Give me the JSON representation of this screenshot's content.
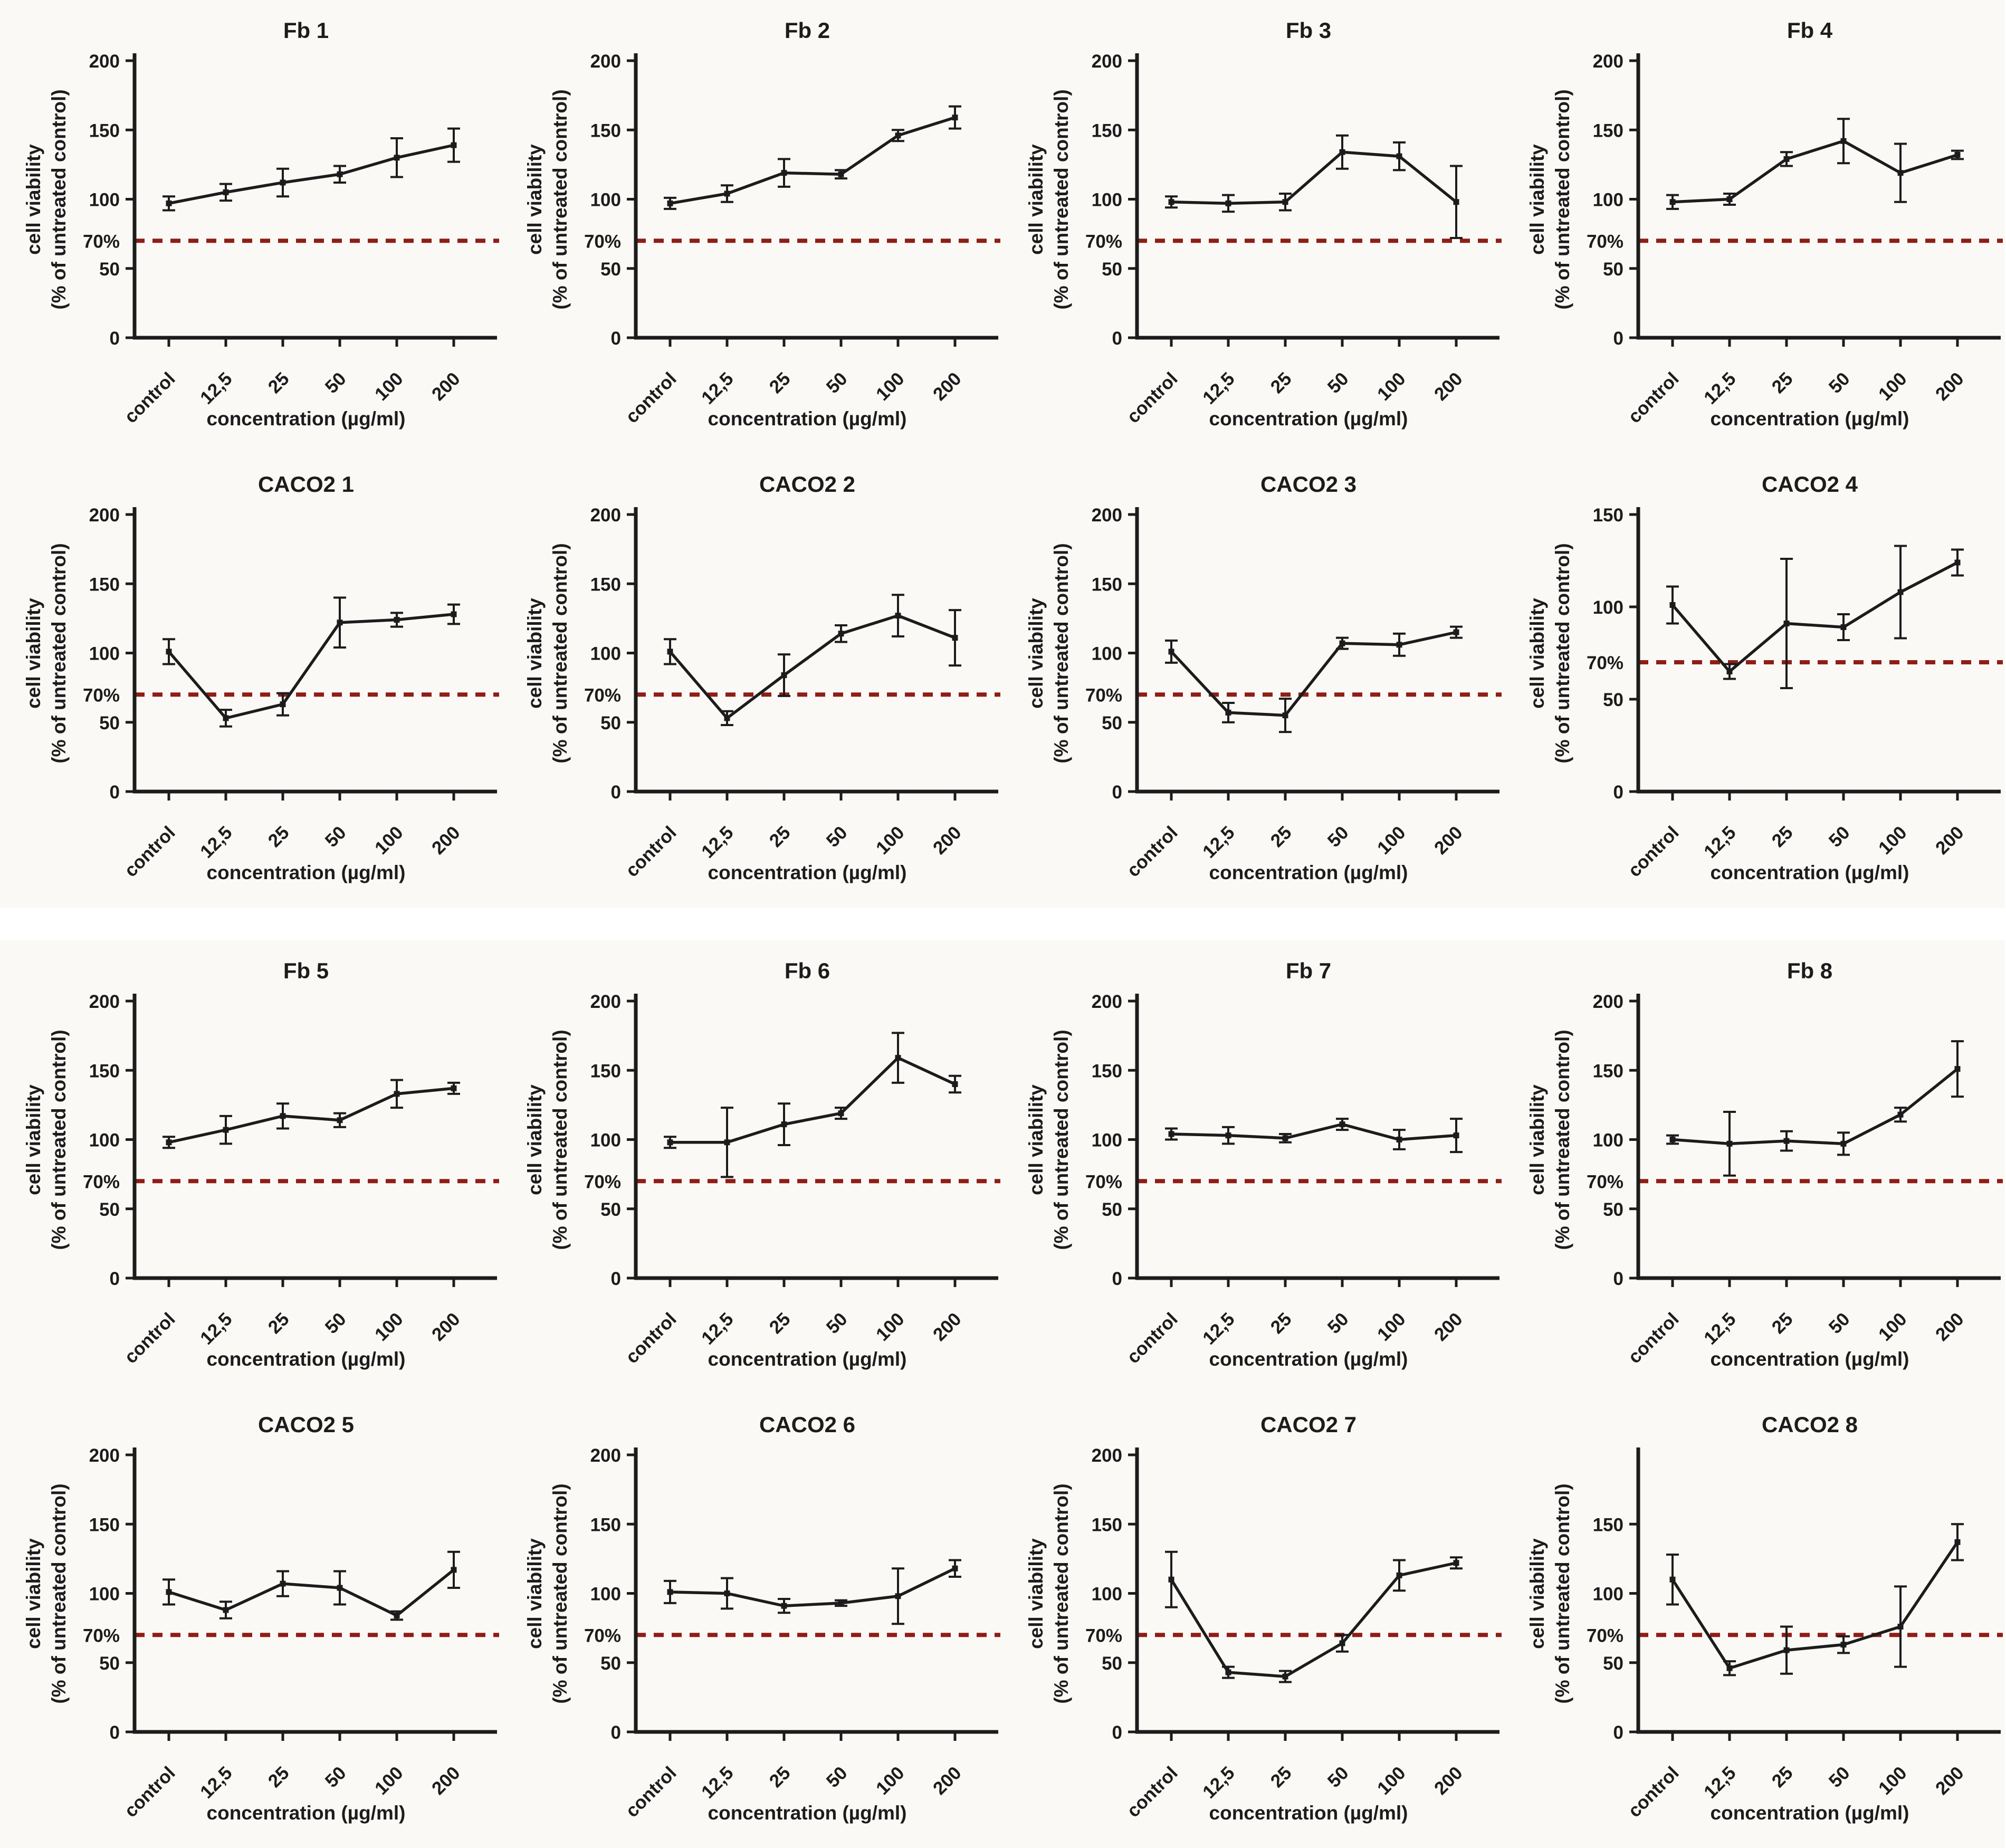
{
  "figure": {
    "x_label": "concentration (µg/ml)",
    "y_label_line1": "cell viability",
    "y_label_line2": "(% of untreated control)",
    "threshold_label": "70%",
    "threshold_value": 70,
    "threshold_color": "#8e1e16",
    "line_color": "#1c1c1c",
    "background_color": "#fbf9f6"
  },
  "chart_data": [
    {
      "type": "line",
      "title": "Fb 1",
      "xlabel": "concentration (µg/ml)",
      "ylabel": "cell viability (% of untreated control)",
      "categories": [
        "control",
        "12,5",
        "25",
        "50",
        "100",
        "200"
      ],
      "values": [
        97,
        105,
        112,
        118,
        130,
        139
      ],
      "errors": [
        5,
        6,
        10,
        6,
        14,
        12
      ],
      "ylim": [
        0,
        200
      ],
      "yticks": [
        0,
        50,
        100,
        150,
        200
      ],
      "threshold": 70,
      "legend": "none",
      "grid": false
    },
    {
      "type": "line",
      "title": "Fb 2",
      "xlabel": "concentration (µg/ml)",
      "ylabel": "cell viability (% of untreated control)",
      "categories": [
        "control",
        "12,5",
        "25",
        "50",
        "100",
        "200"
      ],
      "values": [
        97,
        104,
        119,
        118,
        146,
        159
      ],
      "errors": [
        4,
        6,
        10,
        3,
        4,
        8
      ],
      "ylim": [
        0,
        200
      ],
      "yticks": [
        0,
        50,
        100,
        150,
        200
      ],
      "threshold": 70,
      "legend": "none",
      "grid": false
    },
    {
      "type": "line",
      "title": "Fb 3",
      "xlabel": "concentration (µg/ml)",
      "ylabel": "cell viability (% of untreated control)",
      "categories": [
        "control",
        "12,5",
        "25",
        "50",
        "100",
        "200"
      ],
      "values": [
        98,
        97,
        98,
        134,
        131,
        98
      ],
      "errors": [
        4,
        6,
        6,
        12,
        10,
        26
      ],
      "ylim": [
        0,
        200
      ],
      "yticks": [
        0,
        50,
        100,
        150,
        200
      ],
      "threshold": 70,
      "legend": "none",
      "grid": false
    },
    {
      "type": "line",
      "title": "Fb 4",
      "xlabel": "concentration (µg/ml)",
      "ylabel": "cell viability (% of untreated control)",
      "categories": [
        "control",
        "12,5",
        "25",
        "50",
        "100",
        "200"
      ],
      "values": [
        98,
        100,
        129,
        142,
        119,
        132
      ],
      "errors": [
        5,
        4,
        5,
        16,
        21,
        3
      ],
      "ylim": [
        0,
        200
      ],
      "yticks": [
        0,
        50,
        100,
        150,
        200
      ],
      "threshold": 70,
      "legend": "none",
      "grid": false
    },
    {
      "type": "line",
      "title": "CACO2 1",
      "xlabel": "concentration (µg/ml)",
      "ylabel": "cell viability (% of untreated control)",
      "categories": [
        "control",
        "12,5",
        "25",
        "50",
        "100",
        "200"
      ],
      "values": [
        101,
        53,
        63,
        122,
        124,
        128
      ],
      "errors": [
        9,
        6,
        8,
        18,
        5,
        7
      ],
      "ylim": [
        0,
        200
      ],
      "yticks": [
        0,
        50,
        100,
        150,
        200
      ],
      "threshold": 70,
      "legend": "none",
      "grid": false
    },
    {
      "type": "line",
      "title": "CACO2 2",
      "xlabel": "concentration (µg/ml)",
      "ylabel": "cell viability (% of untreated control)",
      "categories": [
        "control",
        "12,5",
        "25",
        "50",
        "100",
        "200"
      ],
      "values": [
        101,
        53,
        84,
        114,
        127,
        111
      ],
      "errors": [
        9,
        5,
        15,
        6,
        15,
        20
      ],
      "ylim": [
        0,
        200
      ],
      "yticks": [
        0,
        50,
        100,
        150,
        200
      ],
      "threshold": 70,
      "legend": "none",
      "grid": false
    },
    {
      "type": "line",
      "title": "CACO2 3",
      "xlabel": "concentration (µg/ml)",
      "ylabel": "cell viability (% of untreated control)",
      "categories": [
        "control",
        "12,5",
        "25",
        "50",
        "100",
        "200"
      ],
      "values": [
        101,
        57,
        55,
        107,
        106,
        115
      ],
      "errors": [
        8,
        7,
        12,
        4,
        8,
        4
      ],
      "ylim": [
        0,
        200
      ],
      "yticks": [
        0,
        50,
        100,
        150,
        200
      ],
      "threshold": 70,
      "legend": "none",
      "grid": false
    },
    {
      "type": "line",
      "title": "CACO2 4",
      "xlabel": "concentration (µg/ml)",
      "ylabel": "cell viability (% of untreated control)",
      "categories": [
        "control",
        "12,5",
        "25",
        "50",
        "100",
        "200"
      ],
      "values": [
        101,
        65,
        91,
        89,
        108,
        124
      ],
      "errors": [
        10,
        4,
        35,
        7,
        25,
        7
      ],
      "ylim": [
        0,
        150
      ],
      "yticks": [
        0,
        50,
        100,
        150
      ],
      "threshold": 70,
      "legend": "none",
      "grid": false
    },
    {
      "type": "line",
      "title": "Fb 5",
      "xlabel": "concentration (µg/ml)",
      "ylabel": "cell viability (% of untreated control)",
      "categories": [
        "control",
        "12,5",
        "25",
        "50",
        "100",
        "200"
      ],
      "values": [
        98,
        107,
        117,
        114,
        133,
        137
      ],
      "errors": [
        4,
        10,
        9,
        5,
        10,
        4
      ],
      "ylim": [
        0,
        200
      ],
      "yticks": [
        0,
        50,
        100,
        150,
        200
      ],
      "threshold": 70,
      "legend": "none",
      "grid": false
    },
    {
      "type": "line",
      "title": "Fb 6",
      "xlabel": "concentration (µg/ml)",
      "ylabel": "cell viability (% of untreated control)",
      "categories": [
        "control",
        "12,5",
        "25",
        "50",
        "100",
        "200"
      ],
      "values": [
        98,
        98,
        111,
        119,
        159,
        140
      ],
      "errors": [
        4,
        25,
        15,
        4,
        18,
        6
      ],
      "ylim": [
        0,
        200
      ],
      "yticks": [
        0,
        50,
        100,
        150,
        200
      ],
      "threshold": 70,
      "legend": "none",
      "grid": false
    },
    {
      "type": "line",
      "title": "Fb 7",
      "xlabel": "concentration (µg/ml)",
      "ylabel": "cell viability (% of untreated control)",
      "categories": [
        "control",
        "12,5",
        "25",
        "50",
        "100",
        "200"
      ],
      "values": [
        104,
        103,
        101,
        111,
        100,
        103
      ],
      "errors": [
        4,
        6,
        3,
        4,
        7,
        12
      ],
      "ylim": [
        0,
        200
      ],
      "yticks": [
        0,
        50,
        100,
        150,
        200
      ],
      "threshold": 70,
      "legend": "none",
      "grid": false
    },
    {
      "type": "line",
      "title": "Fb 8",
      "xlabel": "concentration (µg/ml)",
      "ylabel": "cell viability (% of untreated control)",
      "categories": [
        "control",
        "12,5",
        "25",
        "50",
        "100",
        "200"
      ],
      "values": [
        100,
        97,
        99,
        97,
        118,
        151
      ],
      "errors": [
        3,
        23,
        7,
        8,
        5,
        20
      ],
      "ylim": [
        0,
        200
      ],
      "yticks": [
        0,
        50,
        100,
        150,
        200
      ],
      "threshold": 70,
      "legend": "none",
      "grid": false
    },
    {
      "type": "line",
      "title": "CACO2 5",
      "xlabel": "concentration (µg/ml)",
      "ylabel": "cell viability (% of untreated control)",
      "categories": [
        "control",
        "12,5",
        "25",
        "50",
        "100",
        "200"
      ],
      "values": [
        101,
        88,
        107,
        104,
        84,
        117
      ],
      "errors": [
        9,
        6,
        9,
        12,
        3,
        13
      ],
      "ylim": [
        0,
        200
      ],
      "yticks": [
        0,
        50,
        100,
        150,
        200
      ],
      "threshold": 70,
      "legend": "none",
      "grid": false
    },
    {
      "type": "line",
      "title": "CACO2 6",
      "xlabel": "concentration (µg/ml)",
      "ylabel": "cell viability (% of untreated control)",
      "categories": [
        "control",
        "12,5",
        "25",
        "50",
        "100",
        "200"
      ],
      "values": [
        101,
        100,
        91,
        93,
        98,
        118
      ],
      "errors": [
        8,
        11,
        5,
        2,
        20,
        6
      ],
      "ylim": [
        0,
        200
      ],
      "yticks": [
        0,
        50,
        100,
        150,
        200
      ],
      "threshold": 70,
      "legend": "none",
      "grid": false
    },
    {
      "type": "line",
      "title": "CACO2 7",
      "xlabel": "concentration (µg/ml)",
      "ylabel": "cell viability (% of untreated control)",
      "categories": [
        "control",
        "12,5",
        "25",
        "50",
        "100",
        "200"
      ],
      "values": [
        110,
        43,
        40,
        64,
        113,
        122
      ],
      "errors": [
        20,
        4,
        4,
        6,
        11,
        4
      ],
      "ylim": [
        0,
        200
      ],
      "yticks": [
        0,
        50,
        100,
        150,
        200
      ],
      "threshold": 70,
      "legend": "none",
      "grid": false
    },
    {
      "type": "line",
      "title": "CACO2 8",
      "xlabel": "concentration (µg/ml)",
      "ylabel": "cell viability (% of untreated control)",
      "categories": [
        "control",
        "12,5",
        "25",
        "50",
        "100",
        "200"
      ],
      "values": [
        110,
        46,
        59,
        63,
        76,
        137
      ],
      "errors": [
        18,
        5,
        17,
        6,
        29,
        13
      ],
      "ylim": [
        0,
        200
      ],
      "yticks": [
        0,
        50,
        100,
        150
      ],
      "yticks_full": [
        0,
        50,
        100,
        150,
        200
      ],
      "threshold": 70,
      "legend": "none",
      "grid": false
    }
  ]
}
